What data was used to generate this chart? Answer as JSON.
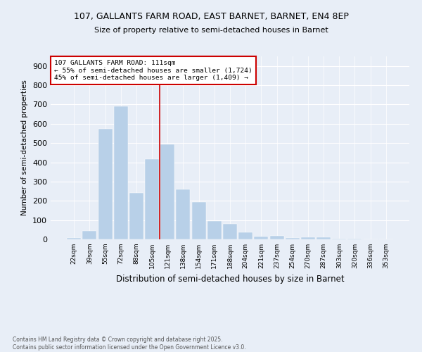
{
  "title_line1": "107, GALLANTS FARM ROAD, EAST BARNET, BARNET, EN4 8EP",
  "title_line2": "Size of property relative to semi-detached houses in Barnet",
  "xlabel": "Distribution of semi-detached houses by size in Barnet",
  "ylabel": "Number of semi-detached properties",
  "bar_labels": [
    "22sqm",
    "39sqm",
    "55sqm",
    "72sqm",
    "88sqm",
    "105sqm",
    "121sqm",
    "138sqm",
    "154sqm",
    "171sqm",
    "188sqm",
    "204sqm",
    "221sqm",
    "237sqm",
    "254sqm",
    "270sqm",
    "287sqm",
    "303sqm",
    "320sqm",
    "336sqm",
    "353sqm"
  ],
  "bar_values": [
    7,
    45,
    575,
    690,
    240,
    415,
    495,
    260,
    195,
    95,
    80,
    38,
    13,
    17,
    8,
    10,
    12,
    3,
    3,
    1,
    0
  ],
  "bar_color": "#b8d0e8",
  "vline_x": 5.5,
  "vline_color": "#cc0000",
  "annotation_text": "107 GALLANTS FARM ROAD: 111sqm\n← 55% of semi-detached houses are smaller (1,724)\n45% of semi-detached houses are larger (1,409) →",
  "annotation_box_color": "#ffffff",
  "annotation_box_edge": "#cc0000",
  "ylim": [
    0,
    950
  ],
  "yticks": [
    0,
    100,
    200,
    300,
    400,
    500,
    600,
    700,
    800,
    900
  ],
  "footer_line1": "Contains HM Land Registry data © Crown copyright and database right 2025.",
  "footer_line2": "Contains public sector information licensed under the Open Government Licence v3.0.",
  "bg_color": "#e8eef7",
  "plot_bg_color": "#e8eef7"
}
